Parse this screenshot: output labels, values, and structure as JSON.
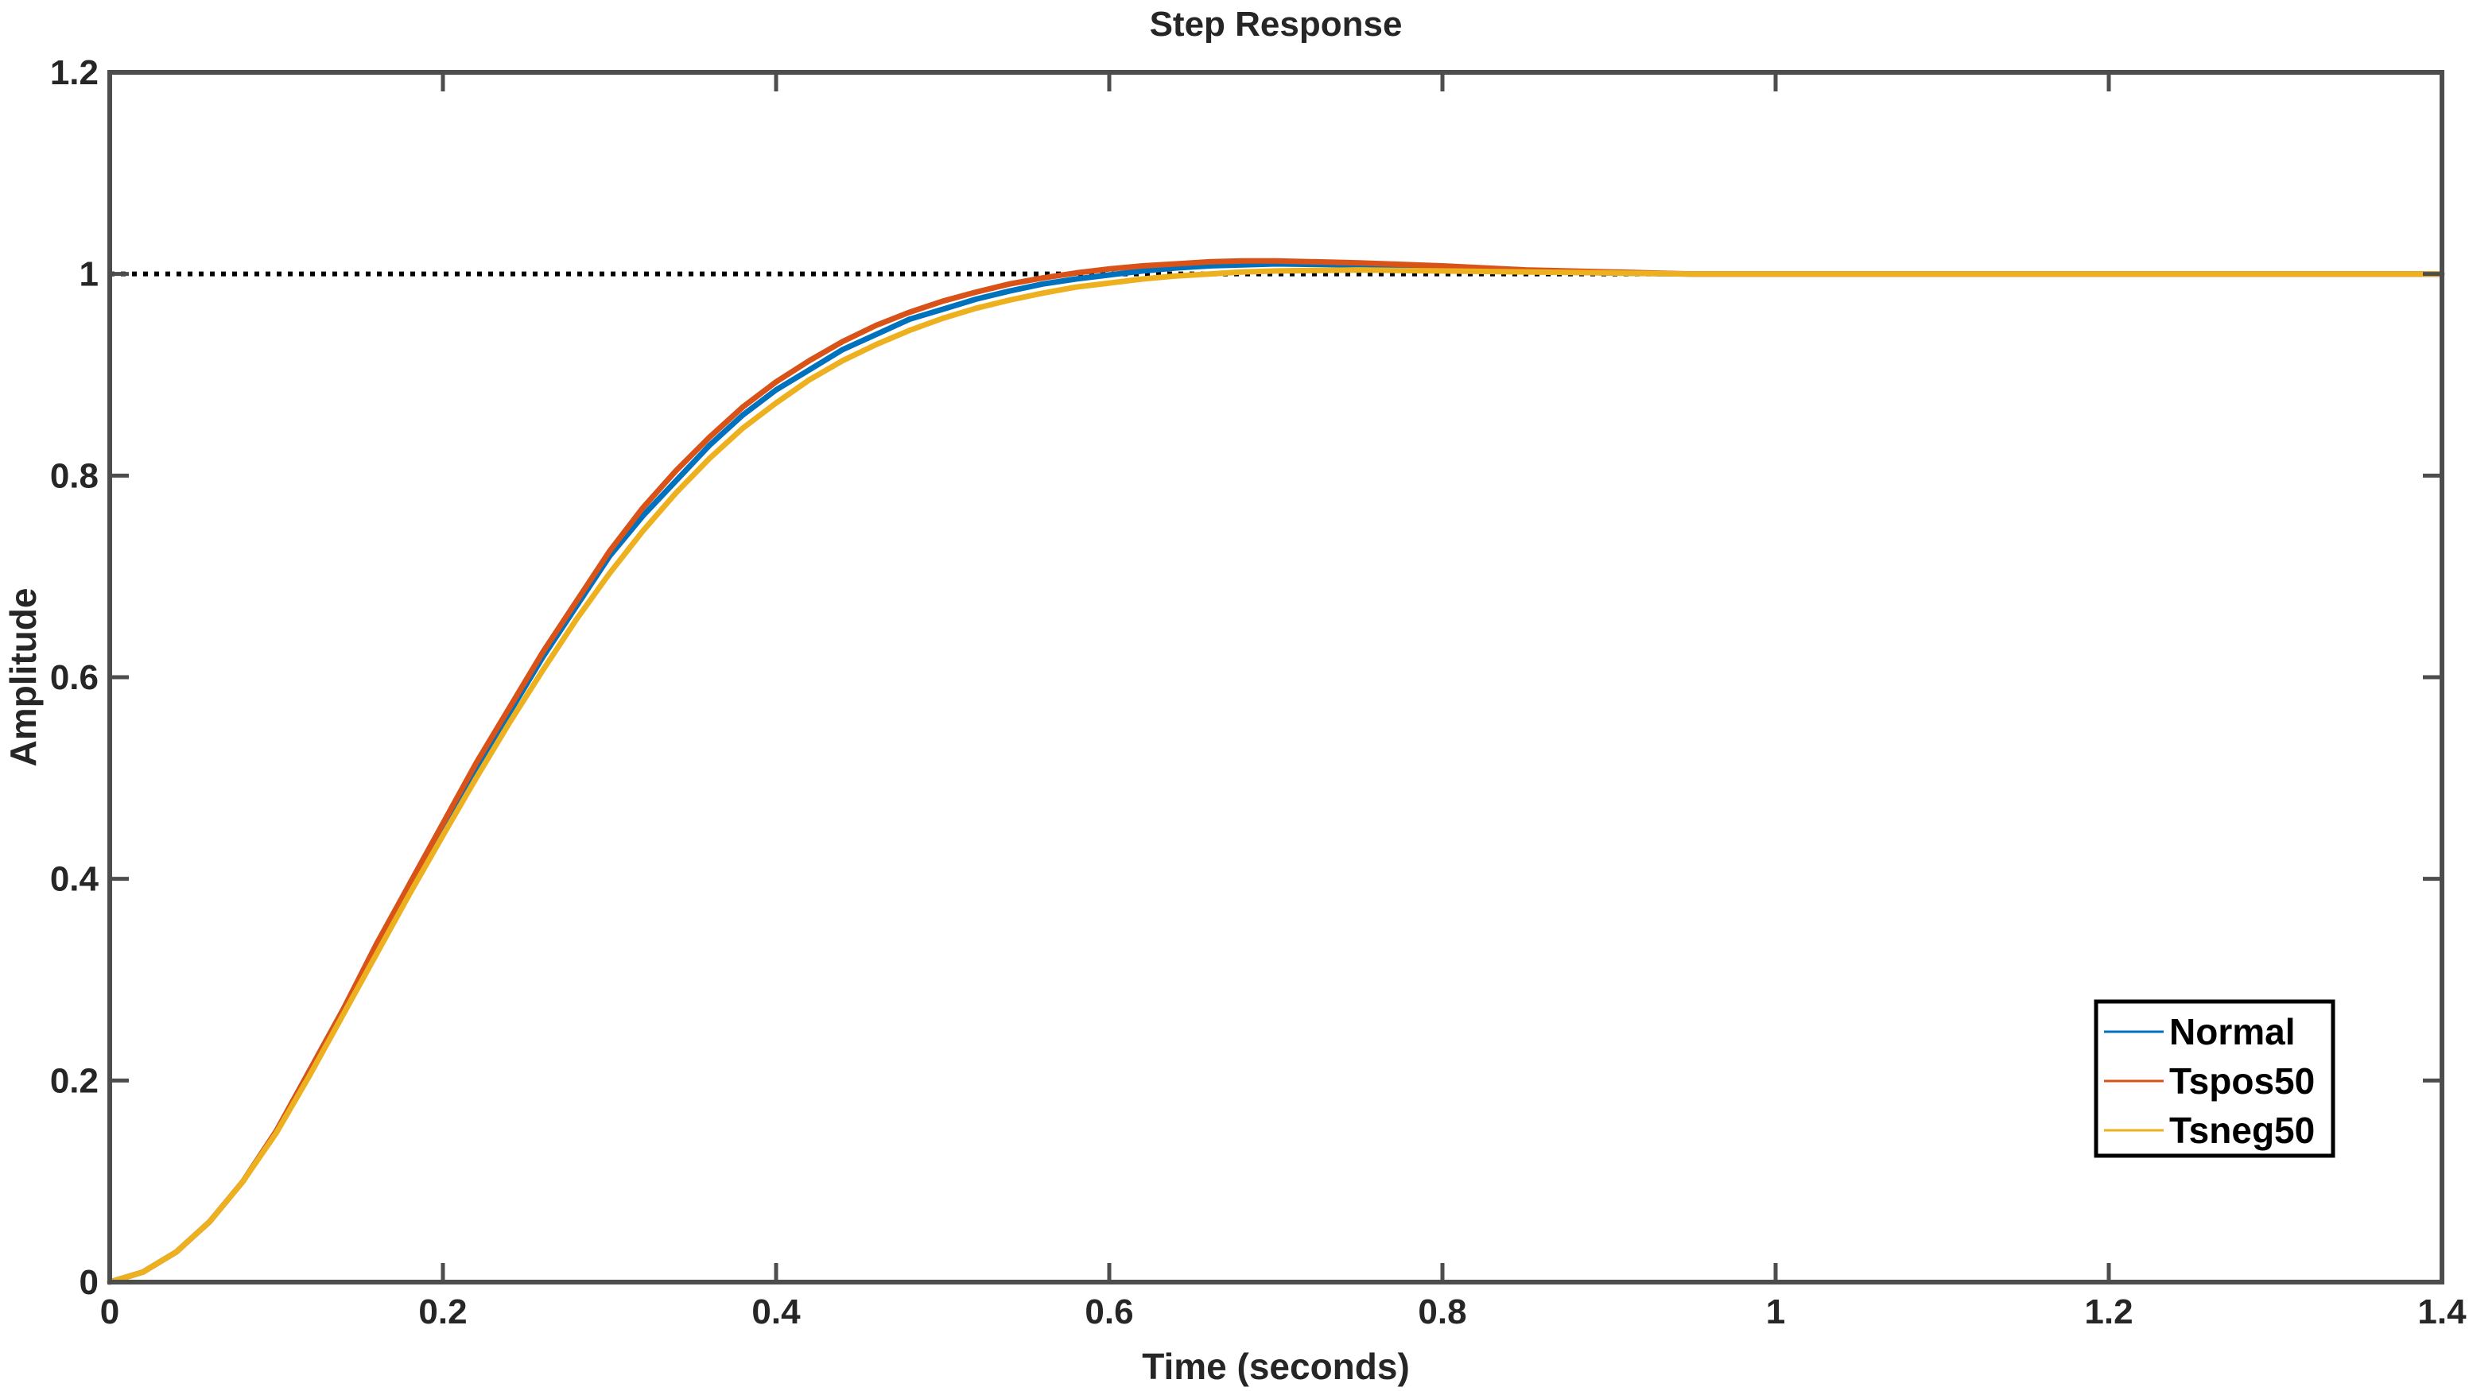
{
  "chart_data": {
    "type": "line",
    "title": "Step Response",
    "xlabel": "Time (seconds)",
    "ylabel": "Amplitude",
    "xlim": [
      0,
      1.4
    ],
    "ylim": [
      0,
      1.2
    ],
    "xticks": [
      0,
      0.2,
      0.4,
      0.6,
      0.8,
      1.0,
      1.2,
      1.4
    ],
    "xtick_labels": [
      "0",
      "0.2",
      "0.4",
      "0.6",
      "0.8",
      "1",
      "1.2",
      "1.4"
    ],
    "yticks": [
      0,
      0.2,
      0.4,
      0.6,
      0.8,
      1.0,
      1.2
    ],
    "ytick_labels": [
      "0",
      "0.2",
      "0.4",
      "0.6",
      "0.8",
      "1",
      "1.2"
    ],
    "grid": false,
    "legend_position": "bottom-right",
    "reference_line": {
      "y": 1.0,
      "style": "dotted",
      "color": "#000000"
    },
    "x": [
      0,
      0.02,
      0.04,
      0.06,
      0.08,
      0.1,
      0.12,
      0.14,
      0.16,
      0.18,
      0.2,
      0.22,
      0.24,
      0.26,
      0.28,
      0.3,
      0.32,
      0.34,
      0.36,
      0.38,
      0.4,
      0.42,
      0.44,
      0.46,
      0.48,
      0.5,
      0.52,
      0.54,
      0.56,
      0.58,
      0.6,
      0.62,
      0.64,
      0.66,
      0.68,
      0.7,
      0.75,
      0.8,
      0.85,
      0.9,
      0.95,
      1.0,
      1.1,
      1.2,
      1.3,
      1.4
    ],
    "series": [
      {
        "name": "Normal",
        "color": "#0072BD",
        "values": [
          0,
          0.01,
          0.03,
          0.06,
          0.1,
          0.15,
          0.21,
          0.27,
          0.33,
          0.39,
          0.45,
          0.51,
          0.565,
          0.62,
          0.67,
          0.72,
          0.76,
          0.795,
          0.83,
          0.86,
          0.885,
          0.905,
          0.925,
          0.94,
          0.955,
          0.965,
          0.975,
          0.983,
          0.99,
          0.995,
          0.999,
          1.003,
          1.006,
          1.008,
          1.009,
          1.01,
          1.009,
          1.006,
          1.003,
          1.001,
          1.0,
          1.0,
          1.0,
          1.0,
          1.0,
          1.0
        ]
      },
      {
        "name": "Tspos50",
        "color": "#D95319",
        "values": [
          0,
          0.01,
          0.03,
          0.06,
          0.1,
          0.15,
          0.21,
          0.27,
          0.335,
          0.395,
          0.455,
          0.515,
          0.57,
          0.625,
          0.675,
          0.725,
          0.768,
          0.805,
          0.838,
          0.868,
          0.893,
          0.914,
          0.933,
          0.949,
          0.962,
          0.973,
          0.982,
          0.99,
          0.996,
          1.001,
          1.005,
          1.008,
          1.01,
          1.012,
          1.013,
          1.013,
          1.011,
          1.008,
          1.004,
          1.002,
          1.0,
          1.0,
          1.0,
          1.0,
          1.0,
          1.0
        ]
      },
      {
        "name": "Tsneg50",
        "color": "#EDB120",
        "values": [
          0,
          0.01,
          0.03,
          0.06,
          0.1,
          0.148,
          0.205,
          0.265,
          0.325,
          0.385,
          0.443,
          0.5,
          0.555,
          0.607,
          0.657,
          0.703,
          0.745,
          0.783,
          0.817,
          0.847,
          0.872,
          0.895,
          0.914,
          0.93,
          0.944,
          0.956,
          0.966,
          0.974,
          0.981,
          0.987,
          0.991,
          0.995,
          0.998,
          1.0,
          1.002,
          1.003,
          1.004,
          1.003,
          1.002,
          1.001,
          1.0,
          1.0,
          1.0,
          1.0,
          1.0,
          1.0
        ]
      }
    ]
  }
}
